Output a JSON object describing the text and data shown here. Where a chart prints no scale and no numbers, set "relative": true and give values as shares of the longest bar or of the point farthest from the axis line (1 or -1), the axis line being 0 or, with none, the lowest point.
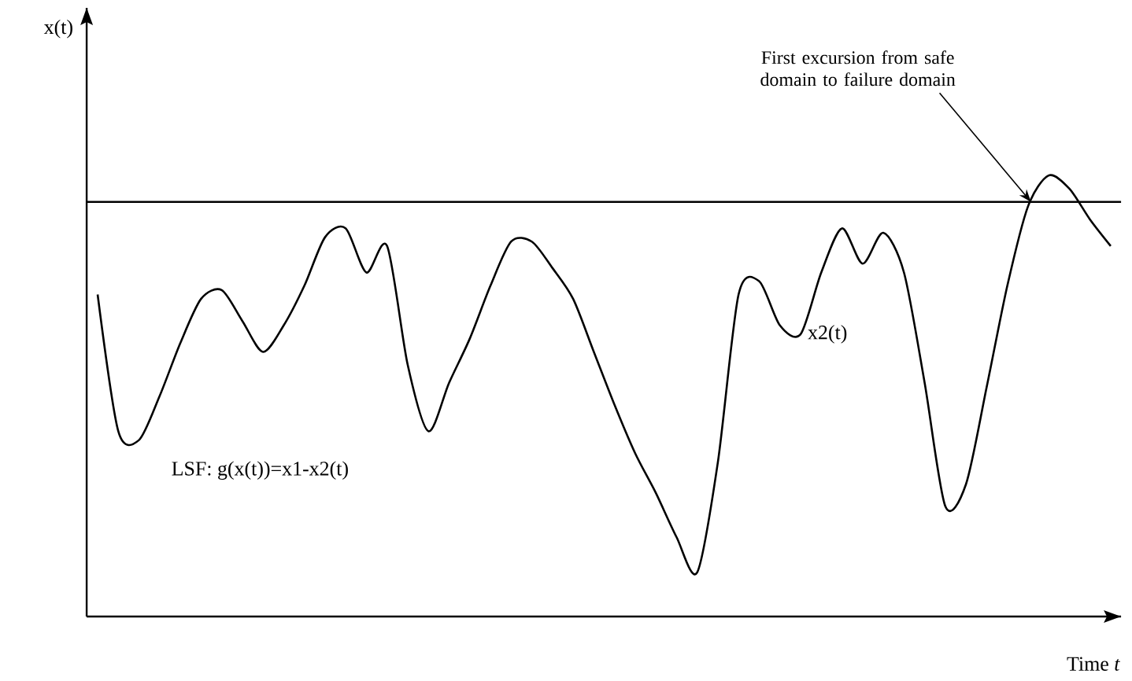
{
  "chart_data": {
    "type": "line",
    "relative": true,
    "xlabel": "Time *t*",
    "categories": [
      null,
      null,
      null,
      null,
      null,
      null,
      null,
      null,
      null,
      null,
      null,
      null,
      null,
      null,
      null,
      null,
      null,
      null,
      null,
      null,
      null,
      null,
      null,
      null,
      null,
      null,
      null,
      null,
      null,
      null,
      null,
      null,
      null,
      null,
      null,
      null,
      null,
      null,
      null,
      null,
      null,
      null,
      null,
      null,
      null,
      null,
      null,
      null,
      null,
      null
    ],
    "series": [
      {
        "name": "x2(t)",
        "color": "#000000",
        "values": [
          0.73,
          0.42,
          0.4,
          0.5,
          0.62,
          0.72,
          0.74,
          0.67,
          0.6,
          0.66,
          0.75,
          0.86,
          0.88,
          0.78,
          0.84,
          0.57,
          0.42,
          0.53,
          0.63,
          0.75,
          0.85,
          0.85,
          0.79,
          0.72,
          0.6,
          0.48,
          0.37,
          0.28,
          0.18,
          0.1,
          0.35,
          0.73,
          0.76,
          0.66,
          0.64,
          0.78,
          0.88,
          0.8,
          0.87,
          0.78,
          0.53,
          0.25,
          0.3,
          0.52,
          0.75,
          0.93,
          1.0,
          0.97,
          0.9,
          0.84
        ]
      }
    ],
    "ref_lines": [
      {
        "axis": "y",
        "value": 0.94,
        "color": "#000000"
      }
    ],
    "annotations": [
      "LSF: g(x(t))=x1-x2(t)",
      "First excursion from safe domain to failure domain",
      "x(t)"
    ],
    "legend": false,
    "marker": "none",
    "line_style": "solid"
  }
}
